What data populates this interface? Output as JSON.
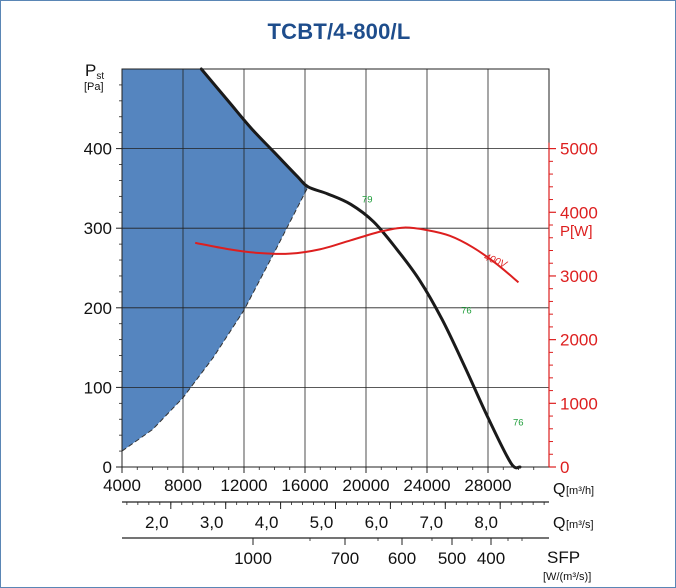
{
  "chart_data": {
    "type": "line",
    "title": "TCBT/4-800/L",
    "left_axis": {
      "label": "P",
      "label_sub": "st",
      "unit": "[Pa]",
      "ticks": [
        0,
        100,
        200,
        300,
        400
      ],
      "range": [
        0,
        500
      ]
    },
    "right_axis": {
      "label": "P[W]",
      "ticks": [
        0,
        1000,
        2000,
        3000,
        4000,
        5000
      ],
      "range": [
        0,
        6250
      ]
    },
    "x_axis": {
      "label": "Q",
      "unit": "[m³/h]",
      "ticks": [
        4000,
        8000,
        12000,
        16000,
        20000,
        24000,
        28000
      ],
      "range": [
        4000,
        32000
      ]
    },
    "x_axis2": {
      "label": "Q",
      "unit": "[m³/s]",
      "ticks": [
        "2,0",
        "3,0",
        "4,0",
        "5,0",
        "6,0",
        "7,0",
        "8,0"
      ],
      "values": [
        2.0,
        3.0,
        4.0,
        5.0,
        6.0,
        7.0,
        8.0
      ]
    },
    "x_axis3": {
      "label": "SFP",
      "unit": "[W/(m³/s)]",
      "ticks": [
        "1000",
        "700",
        "600",
        "500",
        "400"
      ],
      "values": [
        1000,
        700,
        600,
        500,
        400
      ]
    },
    "series": [
      {
        "name": "pressure",
        "axis": "left",
        "color": "#1a1a1a",
        "x": [
          9200,
          11000,
          12500,
          14000,
          15500,
          16200,
          17500,
          19000,
          20500,
          22000,
          23500,
          25000,
          26500,
          28000,
          29500,
          30100
        ],
        "y": [
          500,
          459,
          425,
          395,
          365,
          352,
          343,
          330,
          308,
          274,
          235,
          185,
          125,
          62,
          5,
          0
        ]
      },
      {
        "name": "400V",
        "axis": "right",
        "color": "#dd1f1f",
        "x": [
          8800,
          11000,
          13000,
          15000,
          17000,
          19000,
          21000,
          22500,
          24000,
          25500,
          27000,
          28500,
          30000
        ],
        "y": [
          3520,
          3420,
          3360,
          3350,
          3420,
          3560,
          3700,
          3760,
          3720,
          3630,
          3450,
          3200,
          2900
        ]
      }
    ],
    "efficiency_labels": [
      {
        "text": "79",
        "x": 20000,
        "y": 332
      },
      {
        "text": "76",
        "x": 26500,
        "y": 193
      },
      {
        "text": "76",
        "x": 29900,
        "y": 52
      }
    ],
    "shaded_region": {
      "color": "#5585bf",
      "bottom_x": [
        4000,
        6000,
        8000,
        10000,
        12000,
        14000,
        16200
      ],
      "bottom_y": [
        20,
        47,
        87,
        138,
        197,
        270,
        352
      ]
    },
    "grid": true
  }
}
